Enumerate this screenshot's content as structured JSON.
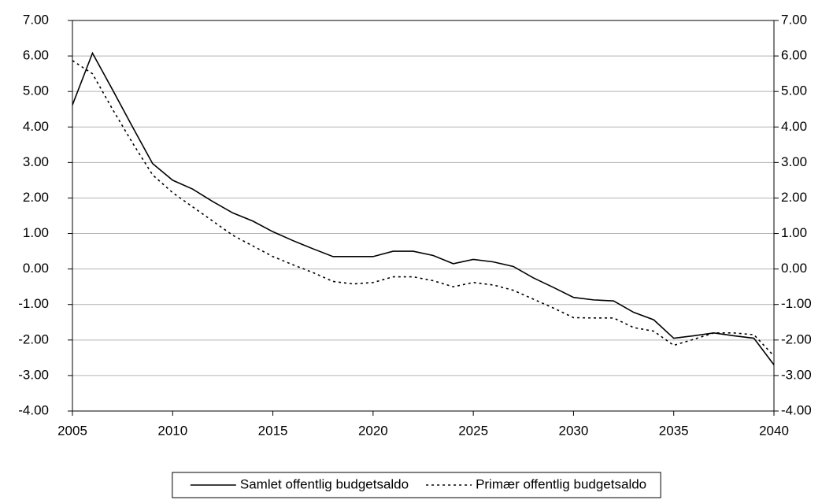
{
  "chart_data": {
    "type": "line",
    "x": [
      2005,
      2006,
      2007,
      2008,
      2009,
      2010,
      2011,
      2012,
      2013,
      2014,
      2015,
      2016,
      2017,
      2018,
      2019,
      2020,
      2021,
      2022,
      2023,
      2024,
      2025,
      2026,
      2027,
      2028,
      2029,
      2030,
      2031,
      2032,
      2033,
      2034,
      2035,
      2036,
      2037,
      2038,
      2039,
      2040
    ],
    "series": [
      {
        "name": "Samlet offentlig budgetsaldo",
        "color": "#000000",
        "style": "solid",
        "values": [
          4.62,
          6.08,
          5.05,
          4.0,
          2.97,
          2.5,
          2.25,
          1.9,
          1.58,
          1.35,
          1.05,
          0.8,
          0.57,
          0.35,
          0.35,
          0.35,
          0.5,
          0.5,
          0.38,
          0.15,
          0.27,
          0.2,
          0.07,
          -0.25,
          -0.52,
          -0.8,
          -0.87,
          -0.9,
          -1.22,
          -1.43,
          -1.95,
          -1.88,
          -1.8,
          -1.88,
          -1.95,
          -2.7
        ]
      },
      {
        "name": "Primær offentlig budgetsaldo",
        "color": "#000000",
        "style": "dashed",
        "values": [
          5.87,
          5.5,
          4.5,
          3.55,
          2.65,
          2.15,
          1.75,
          1.35,
          0.95,
          0.65,
          0.35,
          0.12,
          -0.1,
          -0.35,
          -0.42,
          -0.38,
          -0.22,
          -0.22,
          -0.33,
          -0.5,
          -0.38,
          -0.45,
          -0.6,
          -0.85,
          -1.1,
          -1.37,
          -1.38,
          -1.38,
          -1.65,
          -1.75,
          -2.15,
          -1.98,
          -1.8,
          -1.8,
          -1.85,
          -2.45
        ]
      }
    ],
    "xlim": [
      2005,
      2040
    ],
    "xticks": [
      2005,
      2010,
      2015,
      2020,
      2025,
      2030,
      2035,
      2040
    ],
    "ylim": [
      -4,
      7
    ],
    "yticks": [
      {
        "value": -4,
        "label": "-4.00"
      },
      {
        "value": -3,
        "label": "-3.00"
      },
      {
        "value": -2,
        "label": "-2.00"
      },
      {
        "value": -1,
        "label": "-1.00"
      },
      {
        "value": 0,
        "label": "0.00"
      },
      {
        "value": 1,
        "label": "1.00"
      },
      {
        "value": 2,
        "label": "2.00"
      },
      {
        "value": 3,
        "label": "3.00"
      },
      {
        "value": 4,
        "label": "4.00"
      },
      {
        "value": 5,
        "label": "5.00"
      },
      {
        "value": 6,
        "label": "6.00"
      },
      {
        "value": 7,
        "label": "7.00"
      }
    ],
    "y2lim": [
      -4,
      7
    ],
    "y2ticks": [
      {
        "value": -4,
        "label": "-4.00"
      },
      {
        "value": -3,
        "label": "-3.00"
      },
      {
        "value": -2,
        "label": "-2.00"
      },
      {
        "value": -1,
        "label": "-1.00"
      },
      {
        "value": 0,
        "label": "0.00"
      },
      {
        "value": 1,
        "label": "1.00"
      },
      {
        "value": 2,
        "label": "2.00"
      },
      {
        "value": 3,
        "label": "3.00"
      },
      {
        "value": 4,
        "label": "4.00"
      },
      {
        "value": 5,
        "label": "5.00"
      },
      {
        "value": 6,
        "label": "6.00"
      },
      {
        "value": 7,
        "label": "7.00"
      }
    ],
    "grid": true,
    "legend": "bottom"
  }
}
